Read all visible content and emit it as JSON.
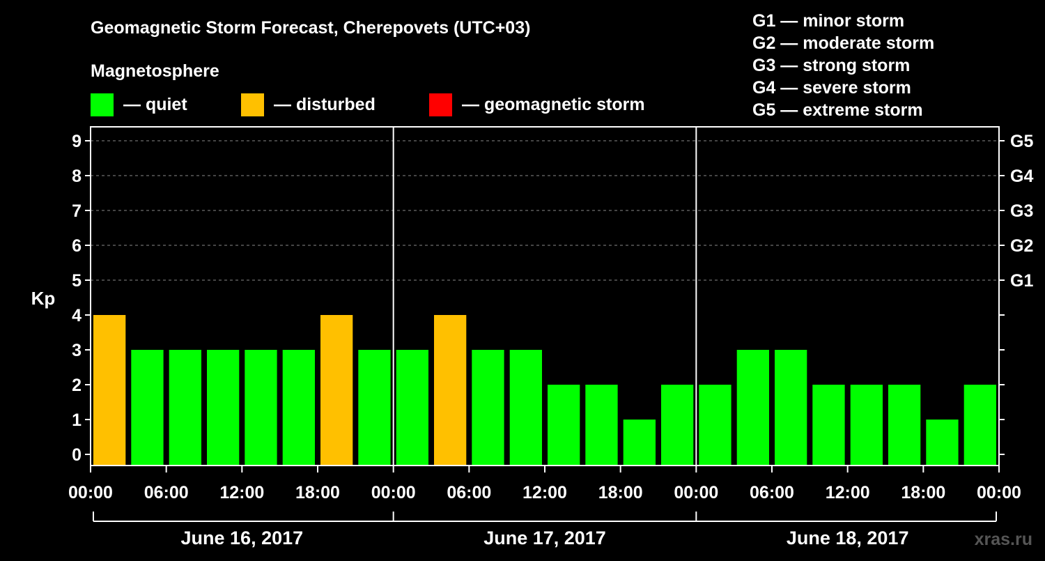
{
  "chart_data": {
    "type": "bar",
    "title": "Geomagnetic Storm Forecast, Cherepovets (UTC+03)",
    "ylabel": "Kp",
    "ylim": [
      0,
      9
    ],
    "yticks": [
      "0",
      "1",
      "2",
      "3",
      "4",
      "5",
      "6",
      "7",
      "8",
      "9"
    ],
    "right_axis_labels": [
      {
        "kp": 5,
        "label": "G1"
      },
      {
        "kp": 6,
        "label": "G2"
      },
      {
        "kp": 7,
        "label": "G3"
      },
      {
        "kp": 8,
        "label": "G4"
      },
      {
        "kp": 9,
        "label": "G5"
      }
    ],
    "legend_title": "Magnetosphere",
    "legend": [
      {
        "label": "— quiet",
        "color": "#00ff00"
      },
      {
        "label": "— disturbed",
        "color": "#ffc000"
      },
      {
        "label": "— geomagnetic storm",
        "color": "#ff0000"
      }
    ],
    "storm_scale": [
      "G1 — minor storm",
      "G2 — moderate storm",
      "G3 — strong storm",
      "G4 — severe storm",
      "G5 — extreme storm"
    ],
    "time_labels": [
      "00:00",
      "06:00",
      "12:00",
      "18:00",
      "00:00",
      "06:00",
      "12:00",
      "18:00",
      "00:00",
      "06:00",
      "12:00",
      "18:00",
      "00:00"
    ],
    "days": [
      "June 16, 2017",
      "June 17, 2017",
      "June 18, 2017"
    ],
    "interval_hours": 3,
    "values": [
      4,
      3,
      3,
      3,
      3,
      3,
      4,
      3,
      3,
      4,
      3,
      3,
      2,
      2,
      1,
      2,
      2,
      3,
      3,
      2,
      2,
      2,
      1,
      2
    ],
    "colors": {
      "quiet": "#00ff00",
      "disturbed": "#ffc000",
      "storm": "#ff0000"
    },
    "watermark": "xras.ru"
  }
}
